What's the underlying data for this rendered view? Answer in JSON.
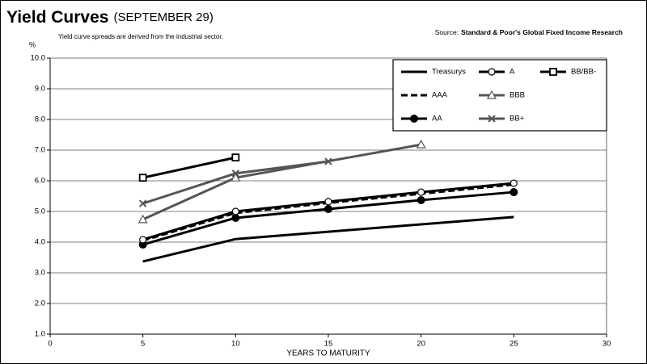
{
  "chart_data": {
    "type": "line",
    "title": "Yield Curves",
    "title_note": "(SEPTEMBER 29)",
    "subtitle": "Yield curve spreads are derived from the industrial sector.",
    "source_label": "Source:",
    "source": "Standard & Poor's Global Fixed Income Research",
    "y_label": "%",
    "x_label": "YEARS TO MATURITY",
    "xlim": [
      0,
      30
    ],
    "xticks": [
      0,
      5,
      10,
      15,
      20,
      25,
      30
    ],
    "ylim": [
      1,
      10
    ],
    "yticks": [
      {
        "value": 1,
        "label": "1.0"
      },
      {
        "value": 2,
        "label": "2.0"
      },
      {
        "value": 3,
        "label": "3.0"
      },
      {
        "value": 4,
        "label": "4.0"
      },
      {
        "value": 5,
        "label": "5.0"
      },
      {
        "value": 6,
        "label": "6.0"
      },
      {
        "value": 7,
        "label": "7.0"
      },
      {
        "value": 8,
        "label": "8.0"
      },
      {
        "value": 9,
        "label": "9.0"
      },
      {
        "value": 10,
        "label": "10.0"
      }
    ],
    "grid": true,
    "legend": "upper right",
    "series": [
      {
        "name": "Treasurys",
        "color": "#000000",
        "marker": "none",
        "dash": false,
        "x": [
          5,
          10,
          25
        ],
        "values": [
          3.37,
          4.1,
          4.82
        ]
      },
      {
        "name": "AAA",
        "color": "#000000",
        "marker": "none",
        "dash": true,
        "x": [
          5,
          10,
          15,
          20,
          25
        ],
        "values": [
          4.05,
          4.95,
          5.28,
          5.58,
          5.88
        ]
      },
      {
        "name": "AA",
        "color": "#000000",
        "marker": "circle-filled",
        "dash": false,
        "x": [
          5,
          10,
          15,
          20,
          25
        ],
        "values": [
          3.92,
          4.79,
          5.08,
          5.37,
          5.63
        ]
      },
      {
        "name": "A",
        "color": "#000000",
        "marker": "circle-open",
        "dash": false,
        "x": [
          5,
          10,
          15,
          20,
          25
        ],
        "values": [
          4.08,
          5.0,
          5.32,
          5.63,
          5.92
        ]
      },
      {
        "name": "BBB",
        "color": "#555555",
        "marker": "triangle-open",
        "dash": false,
        "x": [
          5,
          10,
          20
        ],
        "values": [
          4.74,
          6.1,
          7.18
        ]
      },
      {
        "name": "BB+",
        "color": "#555555",
        "marker": "x",
        "dash": false,
        "x": [
          5,
          10,
          15
        ],
        "values": [
          5.26,
          6.24,
          6.63
        ]
      },
      {
        "name": "BB/BB-",
        "color": "#000000",
        "marker": "square-open",
        "dash": false,
        "x": [
          5,
          10
        ],
        "values": [
          6.1,
          6.76
        ]
      }
    ]
  }
}
